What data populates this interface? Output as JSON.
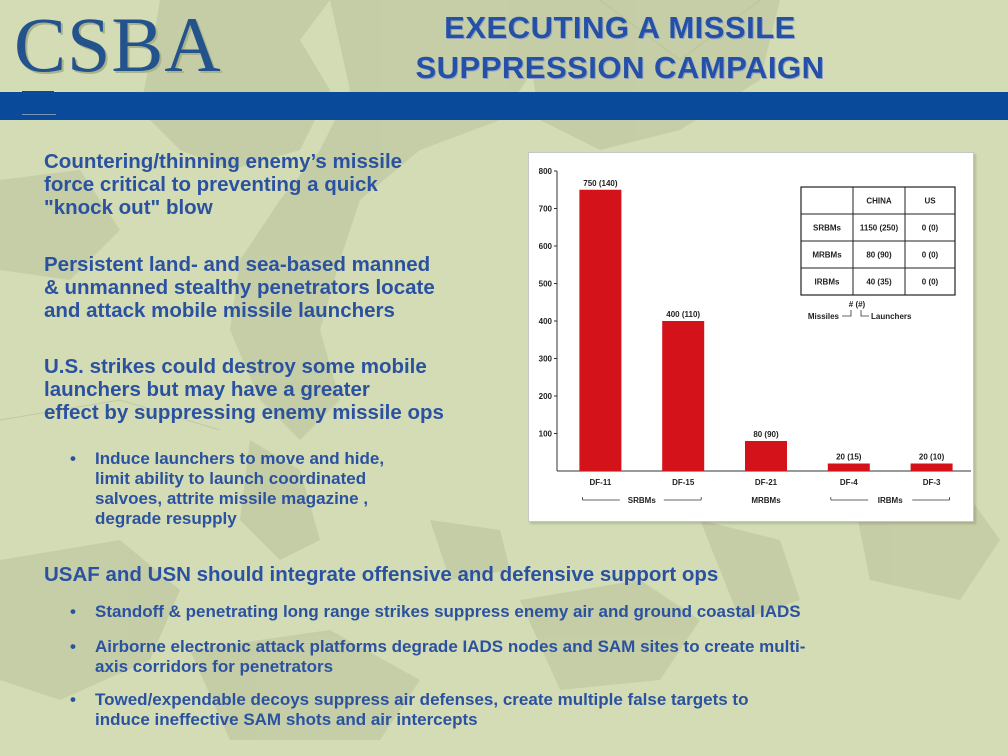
{
  "logo": "CSBA",
  "title_line1": "EXECUTING A MISSILE",
  "title_line2": "SUPPRESSION CAMPAIGN",
  "bullets": [
    {
      "text": "Countering/thinning enemy’s missile\nforce  critical to preventing a quick\n\"knock out\" blow"
    },
    {
      "text": "Persistent land- and sea-based manned\n& unmanned stealthy penetrators locate\nand attack mobile missile launchers"
    },
    {
      "text": "U.S. strikes could destroy some mobile\nlaunchers but may have a greater\neffect by suppressing enemy missile ops"
    }
  ],
  "sub_bullet_1": "Induce launchers to move and hide,\nlimit ability to launch coordinated\nsalvoes, attrite missile magazine ,\ndegrade resupply",
  "bullet_4": "USAF and USN should integrate offensive and defensive support ops",
  "sub_bullets_4": [
    "Standoff & penetrating long range strikes suppress enemy air and ground coastal IADS",
    "Airborne electronic attack platforms degrade IADS nodes and SAM sites to create multi-\naxis corridors for penetrators",
    "Towed/expendable decoys suppress air defenses, create multiple false targets to\ninduce ineffective SAM shots and air intercepts"
  ],
  "bullet_symbol": "•",
  "colors": {
    "accent_blue": "#0a4a9b",
    "text_blue": "#2b52a0",
    "bar_red": "#d4121a",
    "background": "#d3dcb4"
  },
  "chart_data": {
    "type": "bar",
    "categories": [
      "DF-11",
      "DF-15",
      "DF-21",
      "DF-4",
      "DF-3"
    ],
    "values": [
      750,
      400,
      80,
      20,
      20
    ],
    "labels": [
      "750 (140)",
      "400 (110)",
      "80 (90)",
      "20 (15)",
      "20 (10)"
    ],
    "yticks": [
      100,
      200,
      300,
      400,
      500,
      600,
      700,
      800
    ],
    "ylim": [
      0,
      800
    ],
    "groups": [
      {
        "label": "SRBMs",
        "from": 0,
        "to": 1
      },
      {
        "label": "MRBMs",
        "from": 2,
        "to": 2
      },
      {
        "label": "IRBMs",
        "from": 3,
        "to": 4
      }
    ],
    "bar_color": "#d4121a",
    "table": {
      "headers": [
        "",
        "CHINA",
        "US"
      ],
      "rows": [
        [
          "SRBMs",
          "1150 (250)",
          "0 (0)"
        ],
        [
          "MRBMs",
          "80 (90)",
          "0 (0)"
        ],
        [
          "IRBMs",
          "40 (35)",
          "0 (0)"
        ]
      ],
      "legend_top": "# (#)",
      "legend_left": "Missiles",
      "legend_right": "Launchers"
    }
  }
}
